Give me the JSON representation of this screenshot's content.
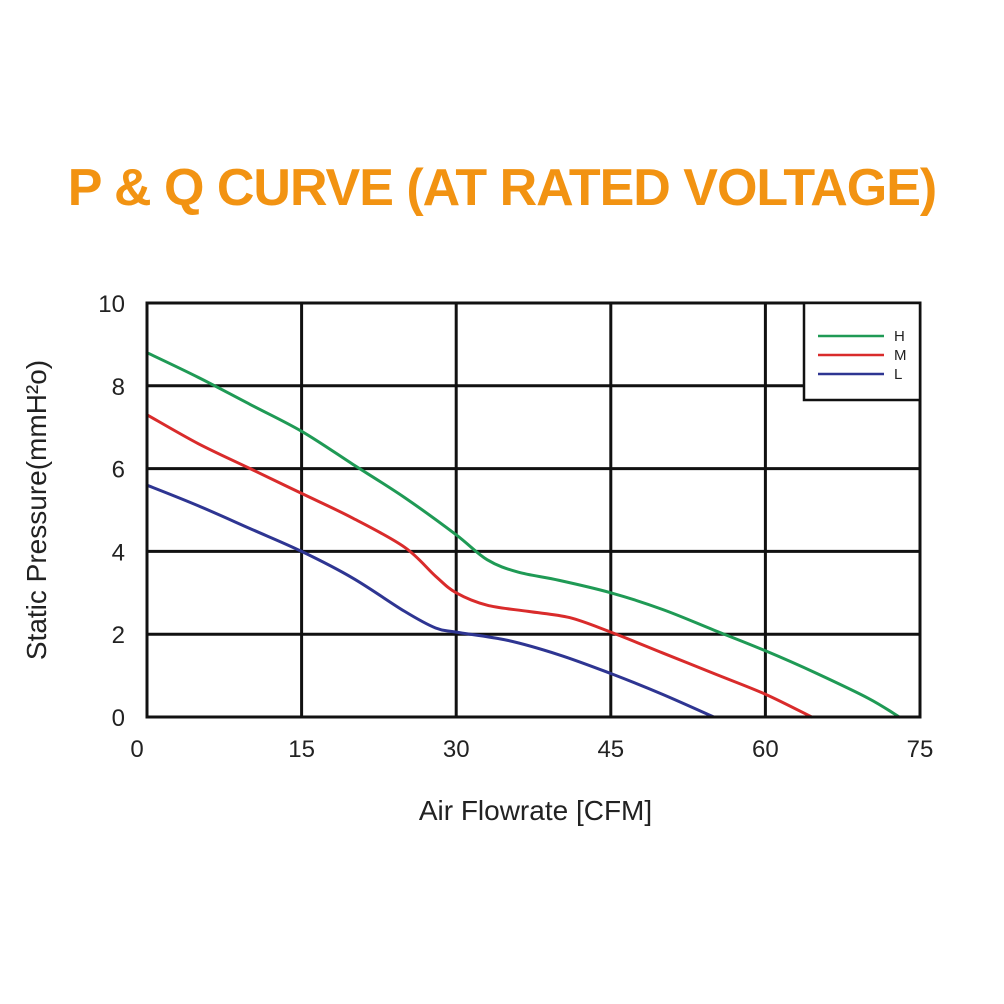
{
  "title": "P & Q CURVE (AT RATED VOLTAGE)",
  "chart_data": {
    "type": "line",
    "xlabel": "Air  Flowrate   [CFM]",
    "ylabel": "Static Pressure(mmH²o)",
    "xlim": [
      0,
      75
    ],
    "ylim": [
      0,
      10
    ],
    "xticks": [
      0,
      15,
      30,
      45,
      60,
      75
    ],
    "yticks": [
      0,
      2,
      4,
      6,
      8,
      10
    ],
    "grid": true,
    "legend_position": "top-right",
    "series": [
      {
        "name": "H",
        "color": "#1f9a55",
        "points": [
          [
            0,
            8.8
          ],
          [
            5,
            8.2
          ],
          [
            10,
            7.55
          ],
          [
            15,
            6.9
          ],
          [
            20,
            6.1
          ],
          [
            25,
            5.3
          ],
          [
            30,
            4.4
          ],
          [
            33,
            3.8
          ],
          [
            36,
            3.5
          ],
          [
            40,
            3.3
          ],
          [
            45,
            3.0
          ],
          [
            50,
            2.6
          ],
          [
            55,
            2.1
          ],
          [
            60,
            1.6
          ],
          [
            65,
            1.05
          ],
          [
            70,
            0.45
          ],
          [
            73,
            0.0
          ]
        ]
      },
      {
        "name": "M",
        "color": "#d92b2b",
        "points": [
          [
            0,
            7.3
          ],
          [
            5,
            6.6
          ],
          [
            10,
            6.0
          ],
          [
            15,
            5.4
          ],
          [
            20,
            4.8
          ],
          [
            25,
            4.1
          ],
          [
            28,
            3.4
          ],
          [
            30,
            3.0
          ],
          [
            33,
            2.7
          ],
          [
            37,
            2.55
          ],
          [
            41,
            2.4
          ],
          [
            45,
            2.05
          ],
          [
            50,
            1.55
          ],
          [
            55,
            1.05
          ],
          [
            60,
            0.55
          ],
          [
            64.5,
            0.0
          ]
        ]
      },
      {
        "name": "L",
        "color": "#2e3592",
        "points": [
          [
            0,
            5.6
          ],
          [
            5,
            5.1
          ],
          [
            10,
            4.55
          ],
          [
            15,
            4.0
          ],
          [
            20,
            3.35
          ],
          [
            25,
            2.55
          ],
          [
            28,
            2.15
          ],
          [
            30,
            2.05
          ],
          [
            35,
            1.85
          ],
          [
            40,
            1.5
          ],
          [
            45,
            1.05
          ],
          [
            50,
            0.55
          ],
          [
            55,
            0.0
          ]
        ]
      }
    ]
  }
}
